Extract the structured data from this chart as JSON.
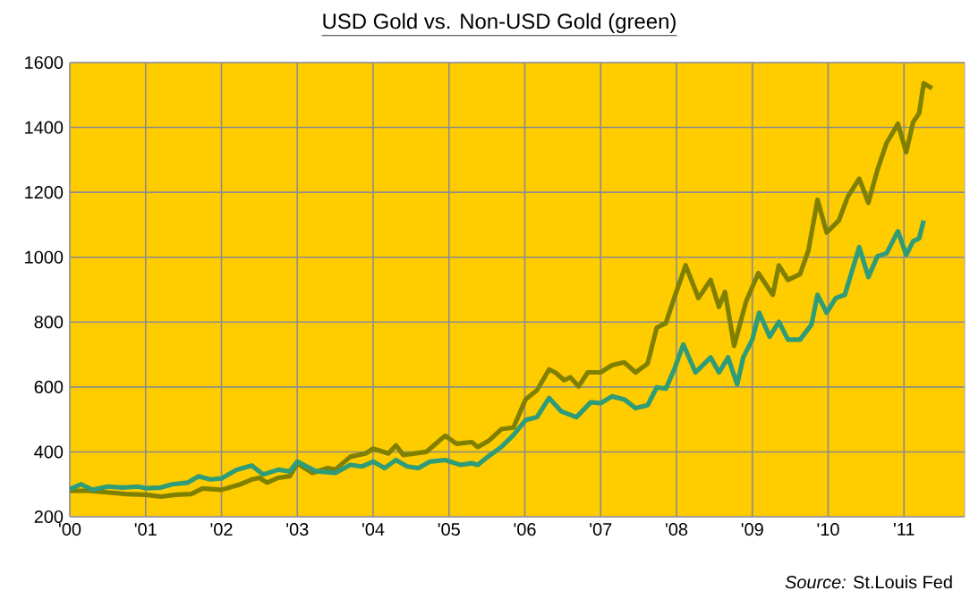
{
  "chart_data": {
    "type": "line",
    "title": "USD Gold vs. Non-USD Gold (green)",
    "annotations": [
      "*Source:* St.Louis Fed"
    ],
    "xlim": [
      2000,
      2011.8
    ],
    "ylim": [
      200,
      1600
    ],
    "xticks": [
      {
        "value": 2000,
        "label": "'00"
      },
      {
        "value": 2001,
        "label": "'01"
      },
      {
        "value": 2002,
        "label": "'02"
      },
      {
        "value": 2003,
        "label": "'03"
      },
      {
        "value": 2004,
        "label": "'04"
      },
      {
        "value": 2005,
        "label": "'05"
      },
      {
        "value": 2006,
        "label": "'06"
      },
      {
        "value": 2007,
        "label": "'07"
      },
      {
        "value": 2008,
        "label": "'08"
      },
      {
        "value": 2009,
        "label": "'09"
      },
      {
        "value": 2010,
        "label": "'10"
      },
      {
        "value": 2011,
        "label": "'11"
      }
    ],
    "yticks": [
      200,
      400,
      600,
      800,
      1000,
      1200,
      1400,
      1600
    ],
    "grid": true,
    "legend": false,
    "marker": "none",
    "line_style": "solid",
    "series": [
      {
        "color": "#808000",
        "x": [
          2000.0,
          2000.25,
          2000.5,
          2000.75,
          2001.0,
          2001.2,
          2001.4,
          2001.6,
          2001.75,
          2002.0,
          2002.25,
          2002.4,
          2002.5,
          2002.6,
          2002.75,
          2002.9,
          2003.0,
          2003.2,
          2003.4,
          2003.5,
          2003.7,
          2003.9,
          2004.0,
          2004.2,
          2004.3,
          2004.4,
          2004.7,
          2004.8,
          2004.95,
          2005.1,
          2005.3,
          2005.38,
          2005.53,
          2005.69,
          2005.85,
          2006.01,
          2006.16,
          2006.32,
          2006.4,
          2006.52,
          2006.6,
          2006.71,
          2006.83,
          2007.0,
          2007.15,
          2007.31,
          2007.46,
          2007.62,
          2007.74,
          2007.86,
          2007.97,
          2008.12,
          2008.29,
          2008.45,
          2008.56,
          2008.64,
          2008.76,
          2008.92,
          2009.08,
          2009.27,
          2009.35,
          2009.47,
          2009.63,
          2009.74,
          2009.86,
          2009.98,
          2010.14,
          2010.26,
          2010.41,
          2010.53,
          2010.65,
          2010.77,
          2010.92,
          2011.03,
          2011.12,
          2011.2,
          2011.26,
          2011.37
        ],
        "values": [
          280,
          280,
          275,
          270,
          268,
          262,
          268,
          270,
          287,
          283,
          300,
          315,
          320,
          305,
          320,
          325,
          364,
          335,
          350,
          345,
          385,
          395,
          410,
          395,
          420,
          390,
          400,
          420,
          450,
          425,
          430,
          415,
          435,
          470,
          475,
          562,
          590,
          654,
          645,
          621,
          630,
          602,
          645,
          645,
          667,
          676,
          645,
          672,
          783,
          797,
          874,
          975,
          874,
          930,
          847,
          893,
          727,
          865,
          951,
          884,
          975,
          930,
          948,
          1021,
          1177,
          1076,
          1113,
          1187,
          1242,
          1168,
          1269,
          1352,
          1411,
          1324,
          1416,
          1444,
          1536,
          1521
        ]
      },
      {
        "color": "#2e9c78",
        "x": [
          2000.0,
          2000.15,
          2000.3,
          2000.5,
          2000.7,
          2000.9,
          2001.0,
          2001.2,
          2001.35,
          2001.55,
          2001.7,
          2001.85,
          2002.0,
          2002.2,
          2002.4,
          2002.55,
          2002.75,
          2002.9,
          2003.0,
          2003.25,
          2003.5,
          2003.7,
          2003.85,
          2004.0,
          2004.15,
          2004.3,
          2004.45,
          2004.6,
          2004.75,
          2004.95,
          2005.15,
          2005.3,
          2005.38,
          2005.53,
          2005.69,
          2005.85,
          2006.01,
          2006.16,
          2006.32,
          2006.48,
          2006.68,
          2006.87,
          2007.0,
          2007.15,
          2007.31,
          2007.46,
          2007.62,
          2007.74,
          2007.86,
          2007.97,
          2008.09,
          2008.25,
          2008.45,
          2008.56,
          2008.68,
          2008.8,
          2008.88,
          2009.0,
          2009.09,
          2009.23,
          2009.35,
          2009.47,
          2009.63,
          2009.78,
          2009.86,
          2009.98,
          2010.1,
          2010.22,
          2010.41,
          2010.53,
          2010.65,
          2010.77,
          2010.92,
          2011.03,
          2011.12,
          2011.2,
          2011.26
        ],
        "values": [
          285,
          300,
          283,
          293,
          290,
          293,
          288,
          290,
          300,
          305,
          325,
          315,
          318,
          345,
          358,
          330,
          345,
          340,
          370,
          340,
          335,
          360,
          355,
          370,
          350,
          375,
          355,
          350,
          370,
          375,
          360,
          365,
          360,
          388,
          415,
          452,
          498,
          507,
          566,
          525,
          507,
          553,
          550,
          571,
          562,
          535,
          544,
          599,
          595,
          654,
          731,
          645,
          691,
          645,
          691,
          608,
          691,
          746,
          829,
          755,
          801,
          746,
          746,
          792,
          884,
          829,
          874,
          884,
          1031,
          939,
          1003,
          1012,
          1080,
          1007,
          1049,
          1058,
          1113
        ]
      }
    ]
  }
}
